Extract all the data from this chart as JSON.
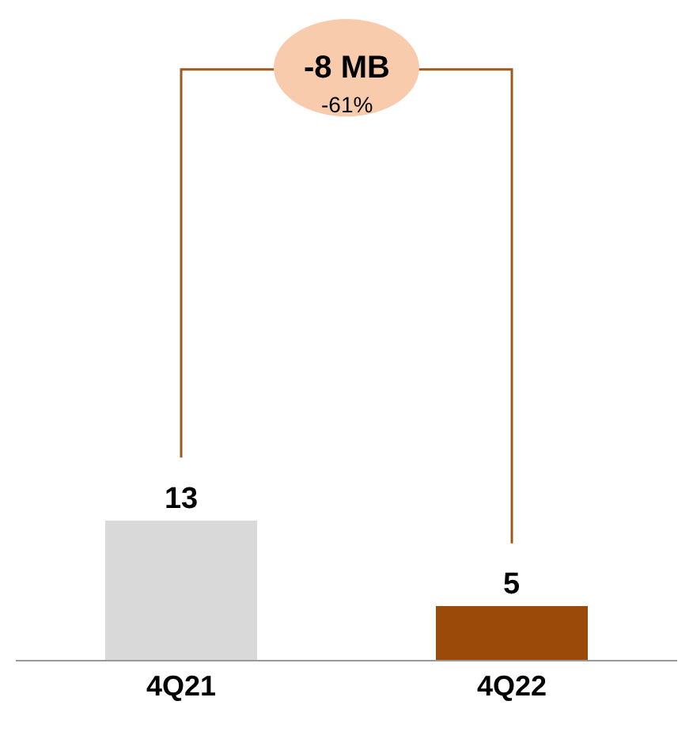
{
  "chart_data": {
    "type": "bar",
    "categories": [
      "4Q21",
      "4Q22"
    ],
    "values": [
      13,
      5
    ],
    "colors": [
      "#d9d9d9",
      "#9c4a0a"
    ],
    "data_labels": true,
    "annotations": [
      "-8 MB",
      "-61%"
    ]
  }
}
